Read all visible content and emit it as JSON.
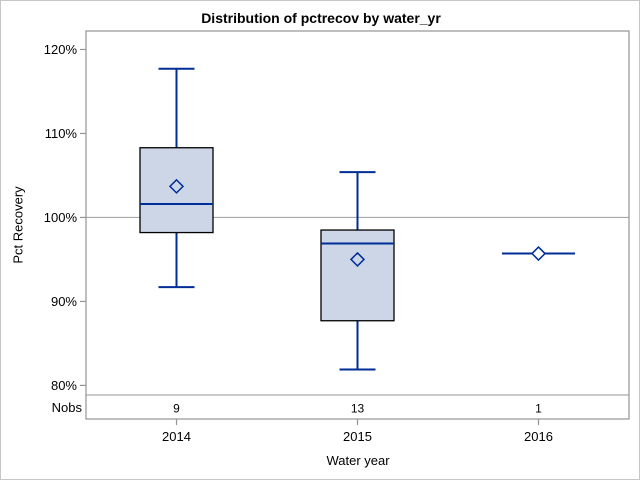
{
  "window": {
    "background": "#ffffff",
    "border_color": "#c6c6c6"
  },
  "chart_data": {
    "type": "boxplot",
    "title": "Distribution of pctrecov by water_yr",
    "xlabel": "Water year",
    "ylabel": "Pct Recovery",
    "categories": [
      "2014",
      "2015",
      "2016"
    ],
    "nobs_label": "Nobs",
    "nobs": [
      "9",
      "13",
      "1"
    ],
    "y_ticks": [
      {
        "value": 120,
        "label": "120%"
      },
      {
        "value": 110,
        "label": "110%"
      },
      {
        "value": 100,
        "label": "100%"
      },
      {
        "value": 90,
        "label": "90%"
      },
      {
        "value": 80,
        "label": "80%"
      }
    ],
    "ylim": [
      76,
      122.2
    ],
    "reference_line": 100,
    "grid": false,
    "legend": "none",
    "series": [
      {
        "category": "2014",
        "n": 9,
        "whisker_low": 91.7,
        "q1": 98.2,
        "median": 101.6,
        "q3": 108.3,
        "whisker_high": 117.7,
        "mean": 103.7
      },
      {
        "category": "2015",
        "n": 13,
        "whisker_low": 81.9,
        "q1": 87.7,
        "median": 96.9,
        "q3": 98.5,
        "whisker_high": 105.4,
        "mean": 95.0
      },
      {
        "category": "2016",
        "n": 1,
        "whisker_low": 95.7,
        "q1": 95.7,
        "median": 95.7,
        "q3": 95.7,
        "whisker_high": 95.7,
        "mean": 95.7
      }
    ],
    "colors": {
      "box_fill": "#cdd6e6",
      "box_stroke": "#000000",
      "whisker": "#002d96",
      "median": "#002d96",
      "mean_marker_stroke": "#002d96",
      "reference_line": "#a8a8a8",
      "axis_frame": "#949494",
      "text": "#000000"
    }
  }
}
